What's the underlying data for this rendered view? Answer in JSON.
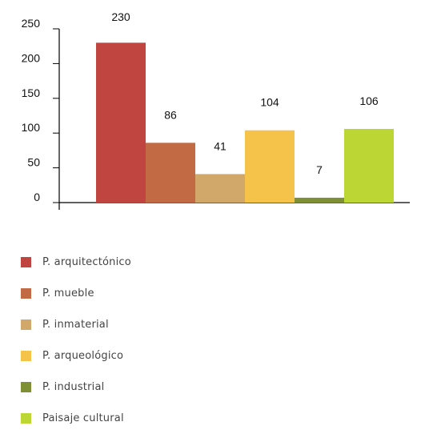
{
  "chart_data": {
    "type": "bar",
    "categories": [
      "P. arquitectónico",
      "P. mueble",
      "P. inmaterial",
      "P. arqueológico",
      "P. industrial",
      "Paisaje cultural"
    ],
    "values": [
      230,
      86,
      41,
      104,
      7,
      106
    ],
    "colors": [
      "#c0443f",
      "#c26a44",
      "#d1a86a",
      "#f5c24a",
      "#7e8f36",
      "#bcd733"
    ],
    "ylim": [
      0,
      250
    ],
    "yticks": [
      "0",
      "50",
      "100",
      "150",
      "200",
      "250"
    ],
    "data_labels": [
      "230",
      "86",
      "41",
      "104",
      "7",
      "106"
    ],
    "title": "",
    "xlabel": "",
    "ylabel": "",
    "grid": false,
    "legend_position": "bottom-left"
  },
  "legend": {
    "items": [
      {
        "label": "P. arquitectónico",
        "color": "#c0443f"
      },
      {
        "label": "P. mueble",
        "color": "#c26a44"
      },
      {
        "label": "P. inmaterial",
        "color": "#d1a86a"
      },
      {
        "label": "P. arqueológico",
        "color": "#f5c24a"
      },
      {
        "label": "P. industrial",
        "color": "#7e8f36"
      },
      {
        "label": "Paisaje cultural",
        "color": "#bcd733"
      }
    ]
  }
}
